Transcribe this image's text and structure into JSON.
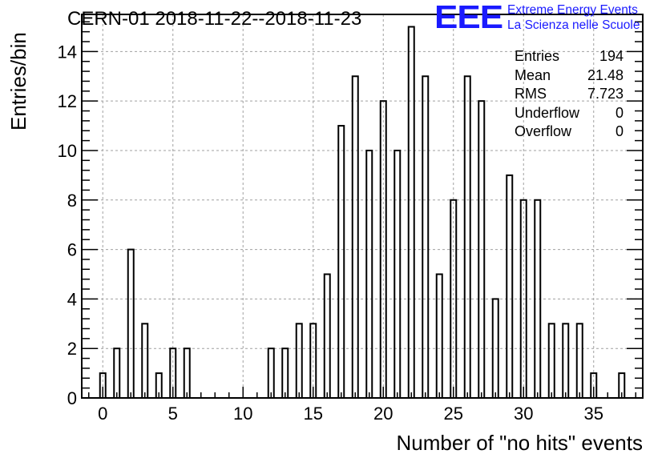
{
  "title": "CERN-01 2018-11-22--2018-11-23",
  "logo": {
    "mark": "EEE",
    "line1": "Extreme Energy Events",
    "line2": "La Scienza nelle Scuole",
    "color": "#1a1aff"
  },
  "stats": [
    {
      "label": "Entries",
      "value": "194"
    },
    {
      "label": "Mean",
      "value": "21.48"
    },
    {
      "label": "RMS",
      "value": "7.723"
    },
    {
      "label": "Underflow",
      "value": "0"
    },
    {
      "label": "Overflow",
      "value": "0"
    }
  ],
  "chart_data": {
    "type": "bar",
    "title": "CERN-01 2018-11-22--2018-11-23",
    "xlabel": "Number of \"no hits\" events",
    "ylabel": "Entries/bin",
    "xlim": [
      -1.5,
      38.5
    ],
    "ylim": [
      0,
      15.5
    ],
    "xticks": [
      0,
      5,
      10,
      15,
      20,
      25,
      30,
      35
    ],
    "yticks": [
      0,
      2,
      4,
      6,
      8,
      10,
      12,
      14
    ],
    "grid": true,
    "bar_width": 0.4,
    "x": [
      0,
      1,
      2,
      3,
      4,
      5,
      6,
      12,
      13,
      14,
      15,
      16,
      17,
      18,
      19,
      20,
      21,
      22,
      23,
      24,
      25,
      26,
      27,
      28,
      29,
      30,
      31,
      32,
      33,
      34,
      35,
      37
    ],
    "values": [
      1,
      2,
      6,
      3,
      1,
      2,
      2,
      2,
      2,
      3,
      3,
      5,
      11,
      13,
      10,
      12,
      10,
      15,
      13,
      5,
      8,
      13,
      12,
      4,
      9,
      8,
      8,
      3,
      3,
      3,
      1,
      1
    ]
  }
}
